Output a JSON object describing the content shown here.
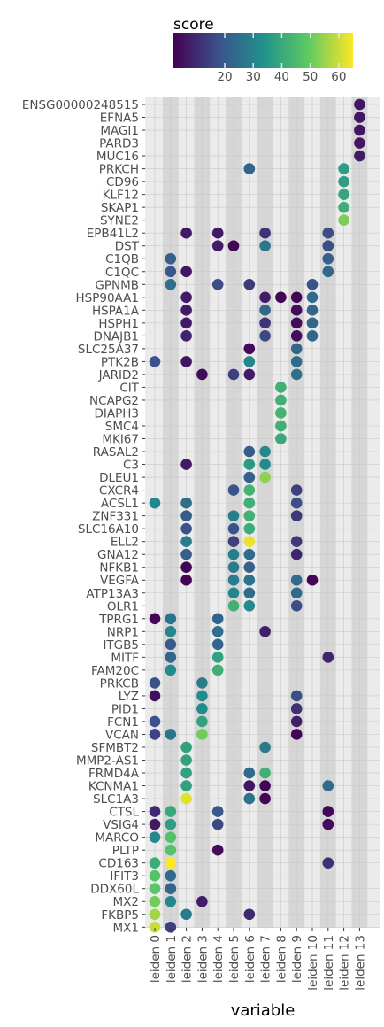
{
  "chart_data": {
    "type": "scatter",
    "xlabel": "variable",
    "ylabel": "",
    "legend": {
      "title": "score",
      "position": "top",
      "range": [
        2,
        65
      ],
      "ticks": [
        20,
        30,
        40,
        50,
        60
      ],
      "colors": [
        "#440154",
        "#3b528b",
        "#21918c",
        "#5ec962",
        "#fde725"
      ]
    },
    "x_categories": [
      "leiden 0",
      "leiden 1",
      "leiden 2",
      "leiden 3",
      "leiden 4",
      "leiden 5",
      "leiden 6",
      "leiden 7",
      "leiden 8",
      "leiden 9",
      "leiden 10",
      "leiden 11",
      "leiden 12",
      "leiden 13"
    ],
    "y_categories": [
      "ENSG00000248515",
      "EFNA5",
      "MAGI1",
      "PARD3",
      "MUC16",
      "PRKCH",
      "CD96",
      "KLF12",
      "SKAP1",
      "SYNE2",
      "EPB41L2",
      "DST",
      "C1QB",
      "C1QC",
      "GPNMB",
      "HSP90AA1",
      "HSPA1A",
      "HSPH1",
      "DNAJB1",
      "SLC25A37",
      "PTK2B",
      "JARID2",
      "CIT",
      "NCAPG2",
      "DIAPH3",
      "SMC4",
      "MKI67",
      "RASAL2",
      "C3",
      "DLEU1",
      "CXCR4",
      "ACSL1",
      "ZNF331",
      "SLC16A10",
      "ELL2",
      "GNA12",
      "NFKB1",
      "VEGFA",
      "ATP13A3",
      "OLR1",
      "TPRG1",
      "NRP1",
      "ITGB5",
      "MITF",
      "FAM20C",
      "PRKCB",
      "LYZ",
      "PID1",
      "FCN1",
      "VCAN",
      "SFMBT2",
      "MMP2-AS1",
      "FRMD4A",
      "KCNMA1",
      "SLC1A3",
      "CTSL",
      "VSIG4",
      "MARCO",
      "PLTP",
      "CD163",
      "IFIT3",
      "DDX60L",
      "MX2",
      "FKBP5",
      "MX1"
    ],
    "points": [
      [
        "ENSG00000248515",
        13,
        6
      ],
      [
        "EFNA5",
        13,
        6
      ],
      [
        "MAGI1",
        13,
        6
      ],
      [
        "PARD3",
        13,
        6
      ],
      [
        "MUC16",
        13,
        7
      ],
      [
        "PRKCH",
        6,
        22
      ],
      [
        "PRKCH",
        12,
        37
      ],
      [
        "CD96",
        12,
        37
      ],
      [
        "KLF12",
        12,
        39
      ],
      [
        "SKAP1",
        12,
        41
      ],
      [
        "SYNE2",
        12,
        52
      ],
      [
        "EPB41L2",
        2,
        7
      ],
      [
        "EPB41L2",
        4,
        7
      ],
      [
        "EPB41L2",
        7,
        12
      ],
      [
        "EPB41L2",
        11,
        17
      ],
      [
        "DST",
        4,
        7
      ],
      [
        "DST",
        5,
        3
      ],
      [
        "DST",
        7,
        27
      ],
      [
        "DST",
        11,
        17
      ],
      [
        "C1QB",
        1,
        21
      ],
      [
        "C1QB",
        11,
        21
      ],
      [
        "C1QC",
        1,
        19
      ],
      [
        "C1QC",
        2,
        6
      ],
      [
        "C1QC",
        11,
        23
      ],
      [
        "GPNMB",
        1,
        25
      ],
      [
        "GPNMB",
        4,
        17
      ],
      [
        "GPNMB",
        6,
        13
      ],
      [
        "GPNMB",
        10,
        18
      ],
      [
        "HSP90AA1",
        2,
        7
      ],
      [
        "HSP90AA1",
        7,
        7
      ],
      [
        "HSP90AA1",
        8,
        3
      ],
      [
        "HSP90AA1",
        9,
        3
      ],
      [
        "HSP90AA1",
        10,
        24
      ],
      [
        "HSPA1A",
        2,
        7
      ],
      [
        "HSPA1A",
        7,
        23
      ],
      [
        "HSPA1A",
        9,
        4
      ],
      [
        "HSPA1A",
        10,
        23
      ],
      [
        "HSPH1",
        2,
        7
      ],
      [
        "HSPH1",
        7,
        12
      ],
      [
        "HSPH1",
        9,
        4
      ],
      [
        "HSPH1",
        10,
        23
      ],
      [
        "DNAJB1",
        2,
        9
      ],
      [
        "DNAJB1",
        7,
        16
      ],
      [
        "DNAJB1",
        9,
        4
      ],
      [
        "DNAJB1",
        10,
        23
      ],
      [
        "SLC25A37",
        6,
        4
      ],
      [
        "SLC25A37",
        9,
        23
      ],
      [
        "PTK2B",
        0,
        18
      ],
      [
        "PTK2B",
        2,
        6
      ],
      [
        "PTK2B",
        6,
        31
      ],
      [
        "PTK2B",
        9,
        24
      ],
      [
        "JARID2",
        3,
        4
      ],
      [
        "JARID2",
        5,
        14
      ],
      [
        "JARID2",
        6,
        7
      ],
      [
        "JARID2",
        9,
        25
      ],
      [
        "CIT",
        8,
        42
      ],
      [
        "NCAPG2",
        8,
        42
      ],
      [
        "DIAPH3",
        8,
        43
      ],
      [
        "SMC4",
        8,
        42
      ],
      [
        "MKI67",
        8,
        40
      ],
      [
        "RASAL2",
        6,
        20
      ],
      [
        "RASAL2",
        7,
        31
      ],
      [
        "C3",
        2,
        7
      ],
      [
        "C3",
        6,
        36
      ],
      [
        "C3",
        7,
        32
      ],
      [
        "DLEU1",
        6,
        21
      ],
      [
        "DLEU1",
        7,
        54
      ],
      [
        "CXCR4",
        5,
        18
      ],
      [
        "CXCR4",
        6,
        43
      ],
      [
        "CXCR4",
        9,
        14
      ],
      [
        "ACSL1",
        0,
        31
      ],
      [
        "ACSL1",
        2,
        25
      ],
      [
        "ACSL1",
        6,
        42
      ],
      [
        "ACSL1",
        9,
        17
      ],
      [
        "ZNF331",
        2,
        20
      ],
      [
        "ZNF331",
        5,
        29
      ],
      [
        "ZNF331",
        6,
        42
      ],
      [
        "ZNF331",
        9,
        13
      ],
      [
        "SLC16A10",
        2,
        18
      ],
      [
        "SLC16A10",
        5,
        18
      ],
      [
        "SLC16A10",
        6,
        41
      ],
      [
        "ELL2",
        2,
        28
      ],
      [
        "ELL2",
        5,
        14
      ],
      [
        "ELL2",
        6,
        63
      ],
      [
        "ELL2",
        9,
        13
      ],
      [
        "GNA12",
        2,
        21
      ],
      [
        "GNA12",
        5,
        29
      ],
      [
        "GNA12",
        6,
        24
      ],
      [
        "GNA12",
        9,
        9
      ],
      [
        "NFKB1",
        2,
        3
      ],
      [
        "NFKB1",
        5,
        28
      ],
      [
        "NFKB1",
        6,
        21
      ],
      [
        "VEGFA",
        2,
        3
      ],
      [
        "VEGFA",
        5,
        28
      ],
      [
        "VEGFA",
        6,
        26
      ],
      [
        "VEGFA",
        9,
        24
      ],
      [
        "VEGFA",
        10,
        3
      ],
      [
        "ATP13A3",
        5,
        31
      ],
      [
        "ATP13A3",
        6,
        24
      ],
      [
        "ATP13A3",
        9,
        24
      ],
      [
        "OLR1",
        5,
        42
      ],
      [
        "OLR1",
        6,
        32
      ],
      [
        "OLR1",
        9,
        17
      ],
      [
        "TPRG1",
        0,
        3
      ],
      [
        "TPRG1",
        1,
        26
      ],
      [
        "TPRG1",
        4,
        22
      ],
      [
        "NRP1",
        1,
        31
      ],
      [
        "NRP1",
        4,
        25
      ],
      [
        "NRP1",
        7,
        8
      ],
      [
        "ITGB5",
        1,
        20
      ],
      [
        "ITGB5",
        4,
        22
      ],
      [
        "MITF",
        1,
        23
      ],
      [
        "MITF",
        4,
        38
      ],
      [
        "MITF",
        11,
        9
      ],
      [
        "FAM20C",
        1,
        32
      ],
      [
        "FAM20C",
        4,
        42
      ],
      [
        "PRKCB",
        0,
        18
      ],
      [
        "PRKCB",
        3,
        28
      ],
      [
        "LYZ",
        0,
        5
      ],
      [
        "LYZ",
        3,
        32
      ],
      [
        "LYZ",
        9,
        17
      ],
      [
        "PID1",
        3,
        32
      ],
      [
        "PID1",
        9,
        11
      ],
      [
        "FCN1",
        0,
        18
      ],
      [
        "FCN1",
        3,
        38
      ],
      [
        "FCN1",
        9,
        8
      ],
      [
        "VCAN",
        0,
        15
      ],
      [
        "VCAN",
        1,
        26
      ],
      [
        "VCAN",
        3,
        51
      ],
      [
        "VCAN",
        9,
        3
      ],
      [
        "SFMBT2",
        2,
        38
      ],
      [
        "SFMBT2",
        7,
        28
      ],
      [
        "MMP2-AS1",
        2,
        38
      ],
      [
        "FRMD4A",
        2,
        38
      ],
      [
        "FRMD4A",
        6,
        24
      ],
      [
        "FRMD4A",
        7,
        42
      ],
      [
        "KCNMA1",
        2,
        38
      ],
      [
        "KCNMA1",
        6,
        6
      ],
      [
        "KCNMA1",
        7,
        3
      ],
      [
        "KCNMA1",
        11,
        24
      ],
      [
        "SLC1A3",
        2,
        62
      ],
      [
        "SLC1A3",
        6,
        26
      ],
      [
        "SLC1A3",
        7,
        3
      ],
      [
        "CTSL",
        0,
        10
      ],
      [
        "CTSL",
        1,
        40
      ],
      [
        "CTSL",
        4,
        19
      ],
      [
        "CTSL",
        11,
        3
      ],
      [
        "VSIG4",
        0,
        7
      ],
      [
        "VSIG4",
        1,
        37
      ],
      [
        "VSIG4",
        4,
        16
      ],
      [
        "VSIG4",
        11,
        4
      ],
      [
        "MARCO",
        0,
        31
      ],
      [
        "MARCO",
        1,
        47
      ],
      [
        "PLTP",
        1,
        47
      ],
      [
        "PLTP",
        4,
        4
      ],
      [
        "CD163",
        0,
        41
      ],
      [
        "CD163",
        1,
        65
      ],
      [
        "CD163",
        11,
        11
      ],
      [
        "IFIT3",
        0,
        47
      ],
      [
        "IFIT3",
        1,
        24
      ],
      [
        "DDX60L",
        0,
        48
      ],
      [
        "DDX60L",
        1,
        23
      ],
      [
        "MX2",
        0,
        51
      ],
      [
        "MX2",
        1,
        31
      ],
      [
        "MX2",
        3,
        7
      ],
      [
        "FKBP5",
        0,
        56
      ],
      [
        "FKBP5",
        2,
        28
      ],
      [
        "FKBP5",
        6,
        10
      ],
      [
        "MX1",
        0,
        60
      ],
      [
        "MX1",
        1,
        14
      ]
    ]
  }
}
